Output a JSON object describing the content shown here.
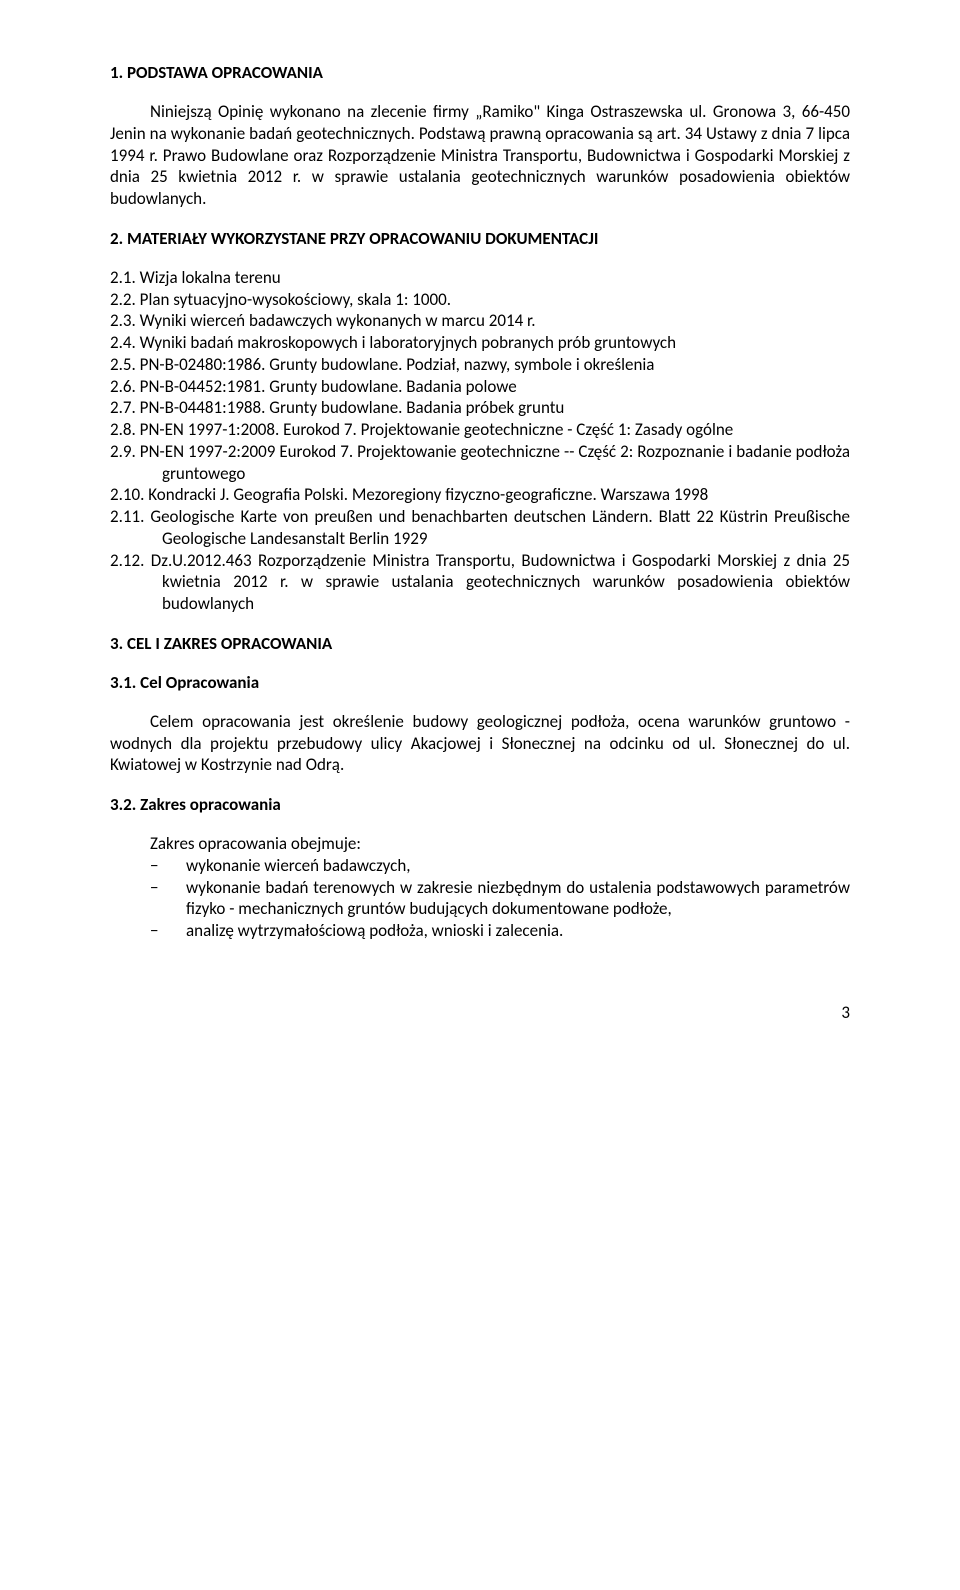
{
  "section1": {
    "heading": "1. PODSTAWA  OPRACOWANIA",
    "paragraph": "Niniejszą Opinię wykonano na zlecenie firmy „Ramiko\" Kinga Ostraszewska ul. Gronowa 3, 66-450 Jenin na wykonanie badań geotechnicznych.  Podstawą prawną opracowania są art. 34 Ustawy z dnia 7 lipca 1994 r. Prawo Budowlane oraz Rozporządzenie Ministra Transportu, Budownictwa i Gospodarki Morskiej z dnia 25 kwietnia 2012 r. w sprawie ustalania geotechnicznych warunków posadowienia obiektów budowlanych."
  },
  "section2": {
    "heading": "2. MATERIAŁY WYKORZYSTANE PRZY OPRACOWANIU DOKUMENTACJI",
    "items": [
      "2.1. Wizja lokalna terenu",
      "2.2. Plan sytuacyjno-wysokościowy, skala 1: 1000.",
      "2.3. Wyniki wierceń badawczych wykonanych w marcu 2014 r.",
      "2.4. Wyniki badań makroskopowych i laboratoryjnych pobranych prób gruntowych",
      "2.5. PN-B-02480:1986. Grunty budowlane. Podział, nazwy, symbole i określenia",
      "2.6. PN-B-04452:1981. Grunty budowlane. Badania polowe",
      "2.7. PN-B-04481:1988. Grunty budowlane. Badania próbek gruntu",
      "2.8.  PN-EN 1997-1:2008. Eurokod 7. Projektowanie geotechniczne - Część 1: Zasady ogólne",
      "2.9.  PN-EN  1997-2:2009  Eurokod  7.  Projektowanie  geotechniczne  --  Część  2: Rozpoznanie i badanie podłoża gruntowego",
      "2.10.  Kondracki  J.  Geografia  Polski.  Mezoregiony  fizyczno-geograficzne.  Warszawa 1998",
      "2.11. Geologische Karte von preußen und benachbarten deutschen Ländern. Blatt 22 Küstrin   Preußische Geologische Landesanstalt Berlin 1929",
      "2.12. Dz.U.2012.463 Rozporządzenie Ministra Transportu, Budownictwa i Gospodarki Morskiej z dnia 25 kwietnia 2012 r. w sprawie ustalania geotechnicznych warunków posadowienia obiektów budowlanych"
    ]
  },
  "section3": {
    "heading": "3. CEL I ZAKRES OPRACOWANIA",
    "sub1": {
      "heading": "3.1. Cel Opracowania",
      "paragraph": "Celem opracowania jest określenie budowy geologicznej podłoża, ocena warunków gruntowo - wodnych dla projektu przebudowy ulicy Akacjowej i Słonecznej na odcinku od ul. Słonecznej do ul. Kwiatowej w Kostrzynie nad Odrą."
    },
    "sub2": {
      "heading": "3.2. Zakres opracowania",
      "intro": "Zakres opracowania obejmuje:",
      "bullets": [
        "wykonanie wierceń badawczych,",
        "wykonanie  badań  terenowych  w  zakresie  niezbędnym  do  ustalenia podstawowych parametrów fizyko - mechanicznych gruntów budujących dokumentowane podłoże,",
        "analizę wytrzymałościową podłoża, wnioski i zalecenia."
      ]
    }
  },
  "page_number": "3"
}
